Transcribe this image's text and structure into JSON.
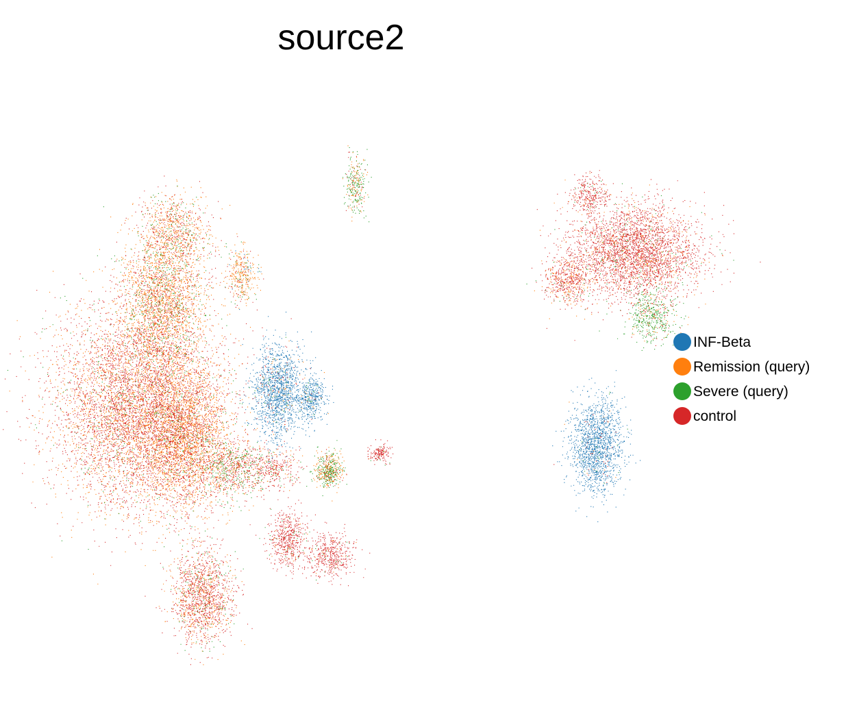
{
  "chart_data": {
    "type": "scatter",
    "title": "source2",
    "xlabel": "",
    "ylabel": "",
    "grid": false,
    "axes_visible": false,
    "legend_position": "right",
    "series": [
      {
        "name": "INF-Beta",
        "color": "#1f77b4"
      },
      {
        "name": "Remission (query)",
        "color": "#ff7f0e"
      },
      {
        "name": "Severe (query)",
        "color": "#2ca02c"
      },
      {
        "name": "control",
        "color": "#d62728"
      }
    ],
    "clusters": [
      {
        "cx": 0.23,
        "cy": 0.55,
        "sx": 0.07,
        "sy": 0.085,
        "n": 7000,
        "mix": [
          0,
          0.38,
          0.07,
          0.55
        ]
      },
      {
        "cx": 0.31,
        "cy": 0.6,
        "sx": 0.035,
        "sy": 0.06,
        "n": 2600,
        "mix": [
          0,
          0.62,
          0.06,
          0.32
        ]
      },
      {
        "cx": 0.27,
        "cy": 0.36,
        "sx": 0.035,
        "sy": 0.06,
        "n": 2600,
        "mix": [
          0,
          0.58,
          0.17,
          0.25
        ]
      },
      {
        "cx": 0.29,
        "cy": 0.24,
        "sx": 0.03,
        "sy": 0.03,
        "n": 800,
        "mix": [
          0,
          0.5,
          0.15,
          0.35
        ]
      },
      {
        "cx": 0.335,
        "cy": 0.87,
        "sx": 0.025,
        "sy": 0.04,
        "n": 1500,
        "mix": [
          0,
          0.3,
          0.1,
          0.6
        ]
      },
      {
        "cx": 0.46,
        "cy": 0.52,
        "sx": 0.02,
        "sy": 0.04,
        "n": 1500,
        "mix": [
          0.92,
          0.03,
          0.02,
          0.03
        ]
      },
      {
        "cx": 0.515,
        "cy": 0.53,
        "sx": 0.012,
        "sy": 0.02,
        "n": 450,
        "mix": [
          0.93,
          0.03,
          0.02,
          0.02
        ]
      },
      {
        "cx": 0.4,
        "cy": 0.32,
        "sx": 0.012,
        "sy": 0.025,
        "n": 350,
        "mix": [
          0.05,
          0.7,
          0.1,
          0.15
        ]
      },
      {
        "cx": 0.545,
        "cy": 0.655,
        "sx": 0.012,
        "sy": 0.015,
        "n": 500,
        "mix": [
          0,
          0.45,
          0.45,
          0.1
        ]
      },
      {
        "cx": 0.385,
        "cy": 0.65,
        "sx": 0.025,
        "sy": 0.025,
        "n": 700,
        "mix": [
          0,
          0.3,
          0.35,
          0.35
        ]
      },
      {
        "cx": 0.45,
        "cy": 0.65,
        "sx": 0.025,
        "sy": 0.02,
        "n": 400,
        "mix": [
          0,
          0.2,
          0.1,
          0.7
        ]
      },
      {
        "cx": 0.475,
        "cy": 0.77,
        "sx": 0.015,
        "sy": 0.025,
        "n": 550,
        "mix": [
          0,
          0.05,
          0.05,
          0.9
        ]
      },
      {
        "cx": 0.545,
        "cy": 0.8,
        "sx": 0.02,
        "sy": 0.02,
        "n": 500,
        "mix": [
          0,
          0.05,
          0.05,
          0.9
        ]
      },
      {
        "cx": 0.63,
        "cy": 0.625,
        "sx": 0.008,
        "sy": 0.008,
        "n": 160,
        "mix": [
          0,
          0.05,
          0.05,
          0.9
        ]
      },
      {
        "cx": 0.59,
        "cy": 0.165,
        "sx": 0.009,
        "sy": 0.025,
        "n": 300,
        "mix": [
          0,
          0.35,
          0.5,
          0.15
        ]
      },
      {
        "cx": 1.05,
        "cy": 0.28,
        "sx": 0.055,
        "sy": 0.04,
        "n": 3500,
        "mix": [
          0,
          0.15,
          0.05,
          0.8
        ]
      },
      {
        "cx": 0.975,
        "cy": 0.18,
        "sx": 0.015,
        "sy": 0.015,
        "n": 300,
        "mix": [
          0,
          0.05,
          0.05,
          0.9
        ]
      },
      {
        "cx": 0.94,
        "cy": 0.33,
        "sx": 0.02,
        "sy": 0.02,
        "n": 500,
        "mix": [
          0,
          0.3,
          0.05,
          0.65
        ]
      },
      {
        "cx": 1.08,
        "cy": 0.39,
        "sx": 0.02,
        "sy": 0.022,
        "n": 500,
        "mix": [
          0,
          0.15,
          0.75,
          0.1
        ]
      },
      {
        "cx": 0.99,
        "cy": 0.61,
        "sx": 0.022,
        "sy": 0.04,
        "n": 1600,
        "mix": [
          0.96,
          0.01,
          0.01,
          0.02
        ]
      }
    ]
  }
}
